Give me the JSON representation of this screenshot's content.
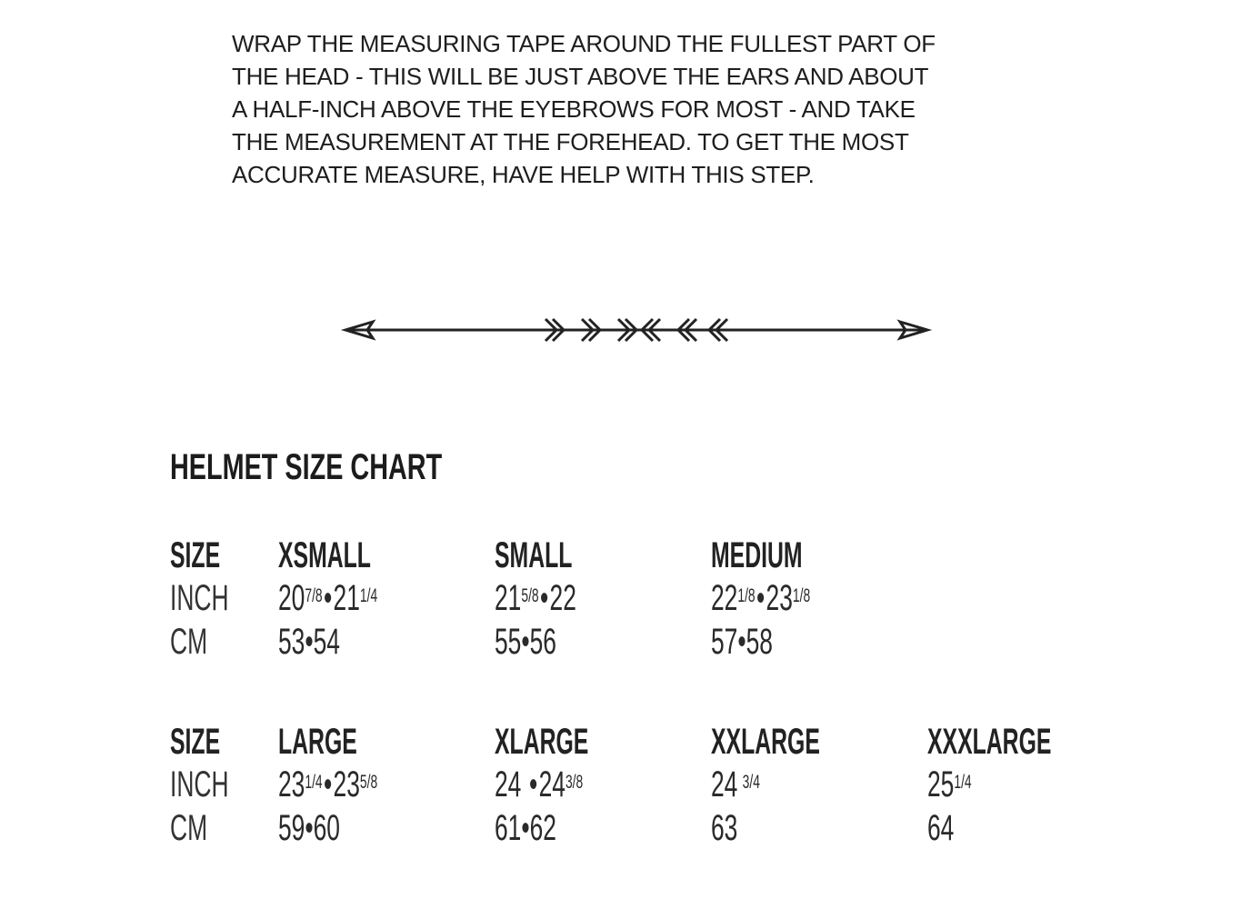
{
  "instructions": [
    "WRAP THE MEASURING TAPE AROUND THE FULLEST PART OF",
    "THE HEAD - THIS WILL BE JUST ABOVE THE EARS AND ABOUT",
    "A HALF-INCH ABOVE THE EYEBROWS FOR MOST - AND TAKE",
    "THE MEASUREMENT AT THE FOREHEAD. TO GET THE MOST",
    "ACCURATE MEASURE, HAVE HELP WITH THIS STEP."
  ],
  "icons": {
    "divider": "double-headed-arrow-with-chevrons-icon"
  },
  "chart_title": "HELMET SIZE CHART",
  "row_labels": {
    "size": "SIZE",
    "inch": "INCH",
    "cm": "CM"
  },
  "separator": "•",
  "groups": [
    {
      "sizes": [
        {
          "name": "XSMALL",
          "inch": [
            {
              "w": "20",
              "f": "7/8"
            },
            {
              "w": "21",
              "f": "1/4"
            }
          ],
          "cm": "53•54"
        },
        {
          "name": "SMALL",
          "inch": [
            {
              "w": "21",
              "f": "5/8"
            },
            {
              "w": "22",
              "f": ""
            }
          ],
          "cm": "55•56"
        },
        {
          "name": "MEDIUM",
          "inch": [
            {
              "w": "22",
              "f": "1/8"
            },
            {
              "w": "23",
              "f": "1/8"
            }
          ],
          "cm": "57•58"
        }
      ]
    },
    {
      "sizes": [
        {
          "name": "LARGE",
          "inch": [
            {
              "w": "23",
              "f": "1/4"
            },
            {
              "w": "23",
              "f": "5/8"
            }
          ],
          "cm": "59•60"
        },
        {
          "name": "XLARGE",
          "inch": [
            {
              "w": "24",
              "f": ""
            },
            {
              "w": "24",
              "f": "3/8"
            }
          ],
          "cm": "61•62"
        },
        {
          "name": "XXLARGE",
          "inch": [
            {
              "w": "24",
              "f": "3/4"
            }
          ],
          "cm": "63"
        },
        {
          "name": "XXXLARGE",
          "inch": [
            {
              "w": "25",
              "f": "1/4"
            }
          ],
          "cm": "64"
        }
      ]
    }
  ]
}
